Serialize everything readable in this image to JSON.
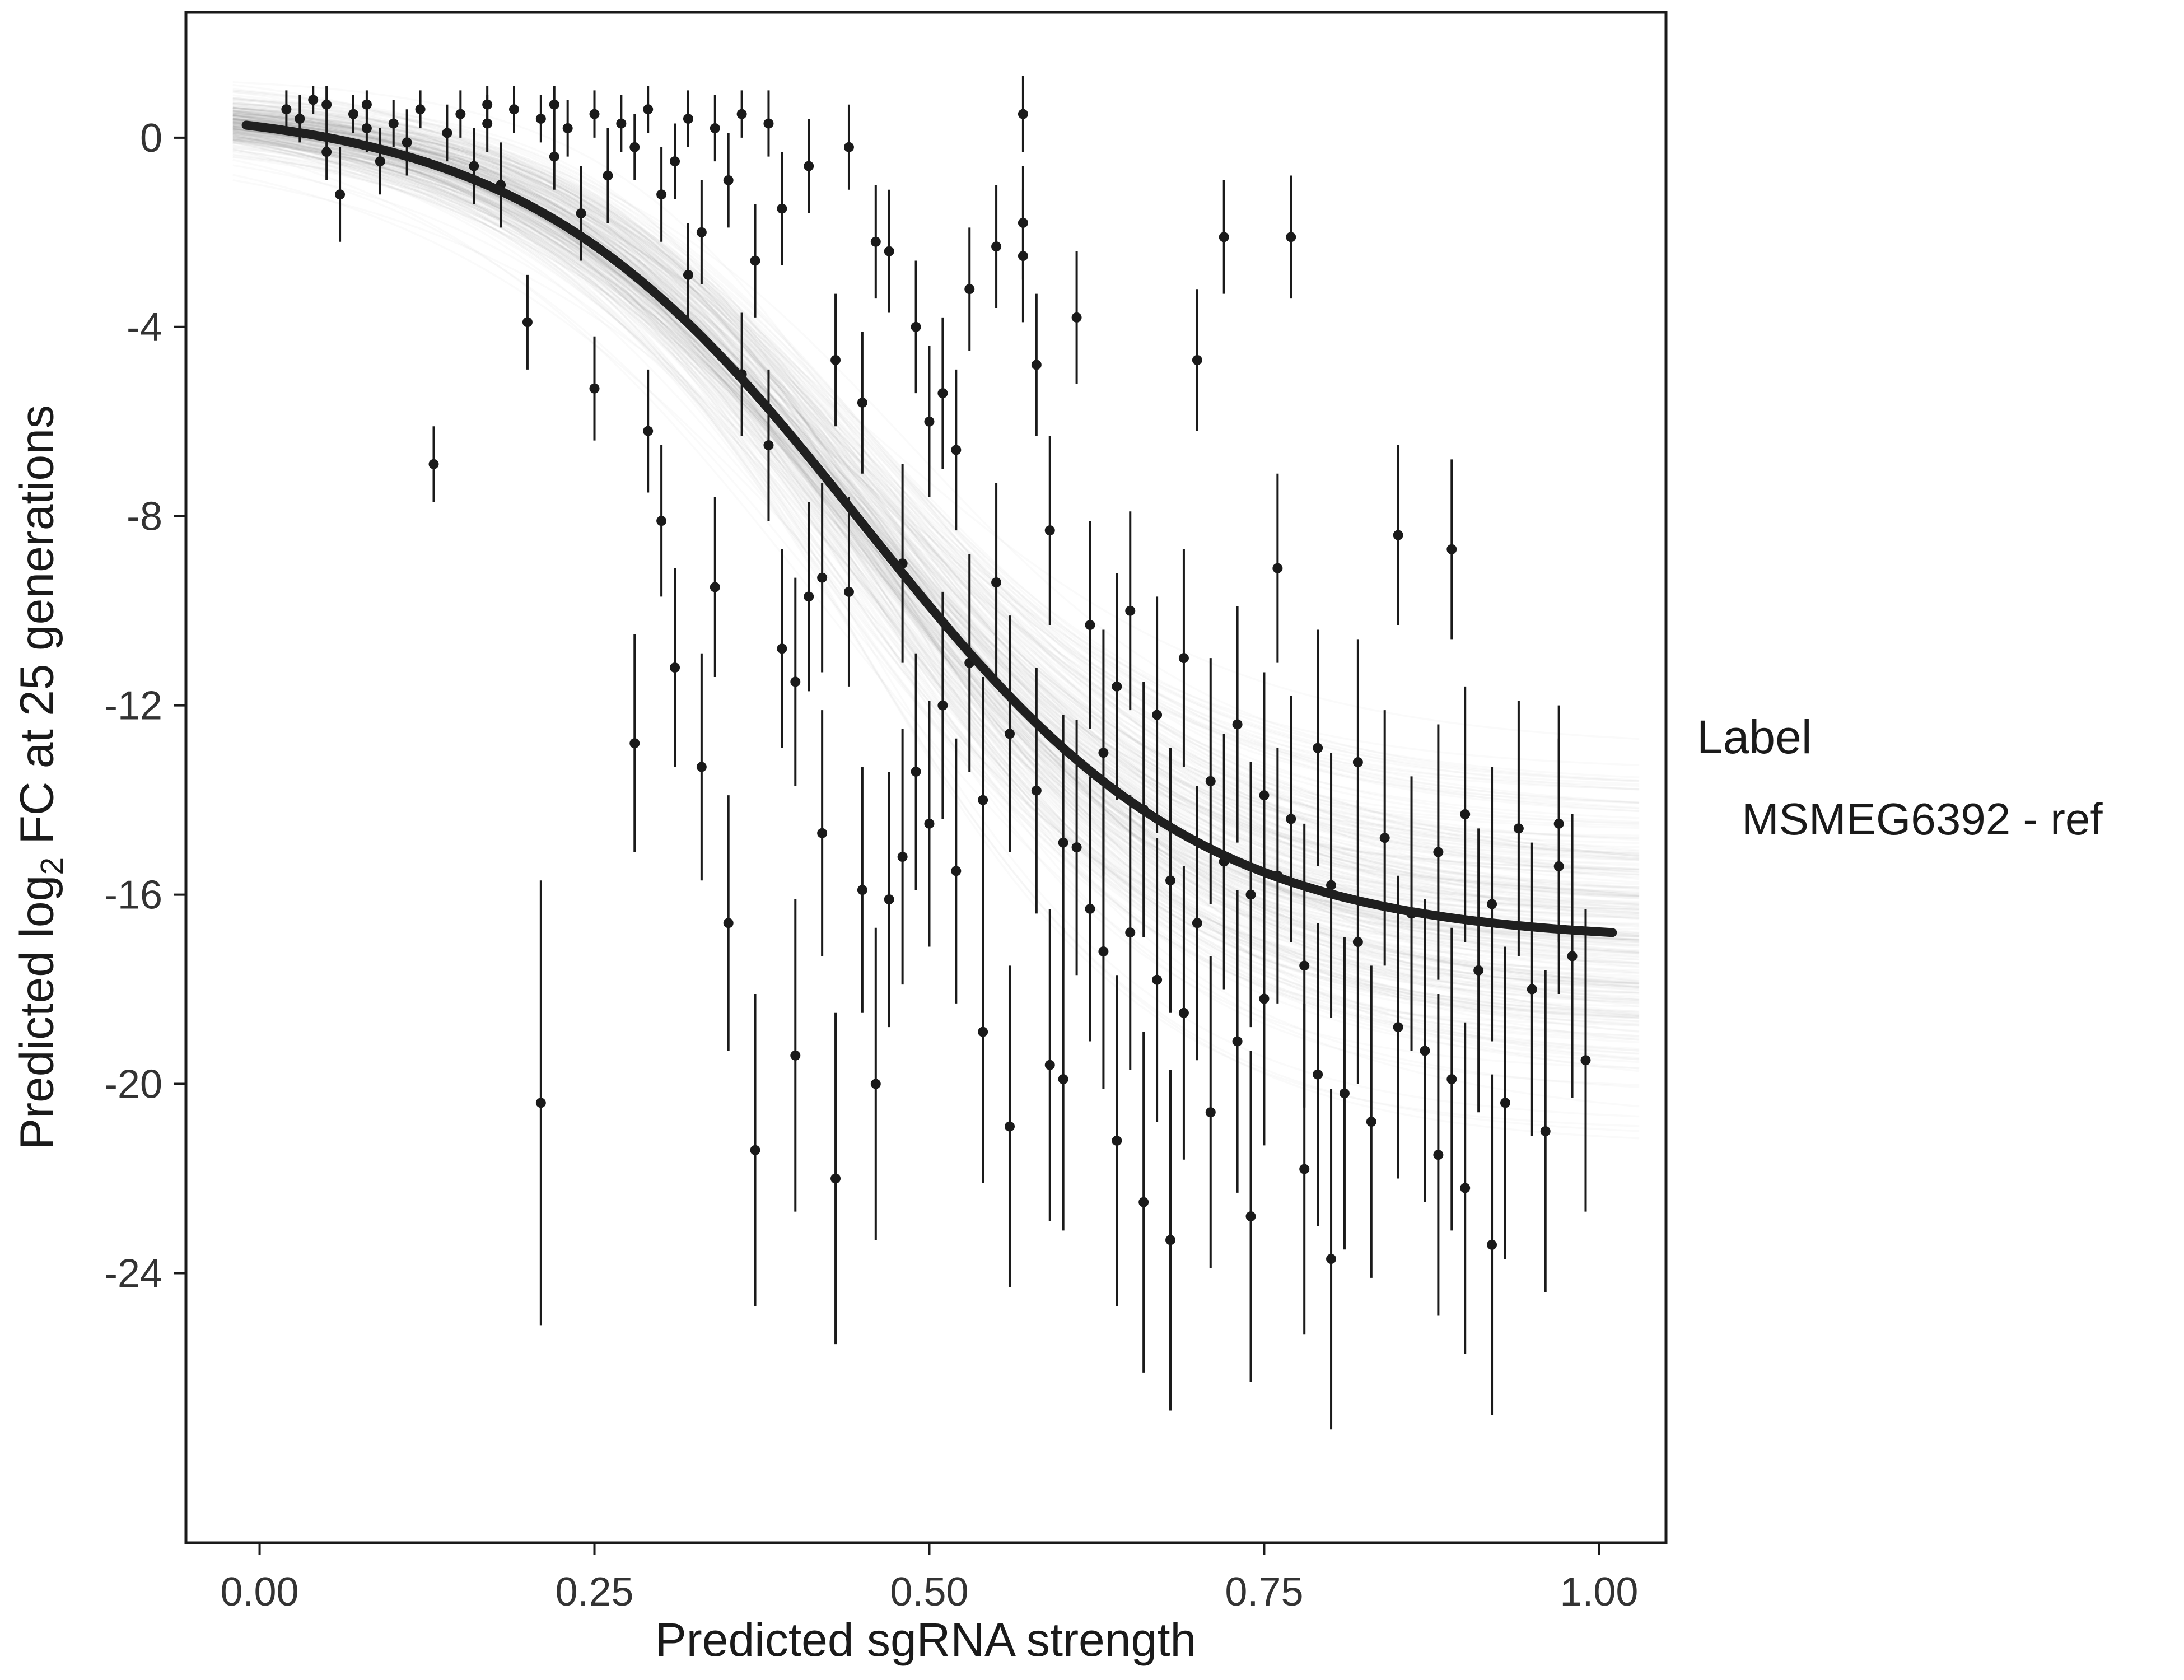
{
  "chart_data": {
    "type": "scatter",
    "title": "",
    "x_axis": {
      "label": "Predicted sgRNA strength",
      "tick_values": [
        0,
        0.25,
        0.5,
        0.75,
        1.0
      ],
      "tick_labels": [
        "0.00",
        "0.25",
        "0.50",
        "0.75",
        "1.00"
      ],
      "range": [
        -0.055,
        1.05
      ]
    },
    "y_axis": {
      "label_pre": "Predicted  log",
      "label_sub": "2",
      "label_post": " FC at 25 generations",
      "tick_values": [
        0,
        -4,
        -8,
        -12,
        -16,
        -20,
        -24
      ],
      "tick_labels": [
        "0",
        "-4",
        "-8",
        "-12",
        "-16",
        "-20",
        "-24"
      ],
      "range": [
        -29.7,
        2.65
      ]
    },
    "legend": {
      "title": "Label",
      "entries": [
        {
          "label": "MSMEG6392 - ref",
          "swatch_color": "#1a1a1a"
        }
      ]
    },
    "fit_curve": {
      "type": "logistic",
      "upper_asymptote": 0.7,
      "lower_asymptote": -17.0,
      "midpoint": 0.45,
      "steepness": 8,
      "color": "#1f1f1f"
    },
    "uncertainty_draws": {
      "count": 250,
      "upper_sd": 0.28,
      "lower_sd": 1.7,
      "midpoint_sd": 0.018,
      "steepness_sd": 0.9,
      "seed": 12345,
      "color": "#000000",
      "opacity": 0.02
    },
    "point_color": "#1a1a1a",
    "grid": false,
    "legend_position": "right",
    "points": [
      [
        0.02,
        0.6,
        0.2,
        1.0
      ],
      [
        0.03,
        0.4,
        -0.1,
        0.9
      ],
      [
        0.04,
        0.8,
        0.5,
        1.1
      ],
      [
        0.05,
        -0.3,
        -0.9,
        0.3
      ],
      [
        0.05,
        0.7,
        0.3,
        1.1
      ],
      [
        0.06,
        -1.2,
        -2.2,
        -0.2
      ],
      [
        0.07,
        0.5,
        0.1,
        0.9
      ],
      [
        0.08,
        0.2,
        -0.3,
        0.7
      ],
      [
        0.08,
        0.7,
        0.4,
        1.0
      ],
      [
        0.09,
        -0.5,
        -1.2,
        0.2
      ],
      [
        0.1,
        0.3,
        -0.2,
        0.8
      ],
      [
        0.11,
        -0.1,
        -0.8,
        0.6
      ],
      [
        0.12,
        0.6,
        0.2,
        1.0
      ],
      [
        0.13,
        -6.9,
        -7.7,
        -6.1
      ],
      [
        0.14,
        0.1,
        -0.5,
        0.7
      ],
      [
        0.15,
        0.5,
        0.0,
        1.0
      ],
      [
        0.16,
        -0.6,
        -1.4,
        0.2
      ],
      [
        0.17,
        0.3,
        -0.3,
        0.9
      ],
      [
        0.17,
        0.7,
        0.3,
        1.1
      ],
      [
        0.18,
        -1.0,
        -1.9,
        -0.1
      ],
      [
        0.19,
        0.6,
        0.1,
        1.1
      ],
      [
        0.2,
        -3.9,
        -4.9,
        -2.9
      ],
      [
        0.21,
        -20.4,
        -25.1,
        -15.7
      ],
      [
        0.21,
        0.4,
        -0.1,
        0.9
      ],
      [
        0.22,
        0.7,
        0.3,
        1.1
      ],
      [
        0.22,
        -0.4,
        -1.1,
        0.3
      ],
      [
        0.23,
        0.2,
        -0.4,
        0.8
      ],
      [
        0.24,
        -1.6,
        -2.6,
        -0.6
      ],
      [
        0.25,
        0.5,
        0.0,
        1.0
      ],
      [
        0.25,
        -5.3,
        -6.4,
        -4.2
      ],
      [
        0.26,
        -0.8,
        -1.8,
        0.2
      ],
      [
        0.27,
        0.3,
        -0.3,
        0.9
      ],
      [
        0.28,
        -12.8,
        -15.1,
        -10.5
      ],
      [
        0.28,
        -0.2,
        -0.9,
        0.5
      ],
      [
        0.29,
        -6.2,
        -7.5,
        -4.9
      ],
      [
        0.29,
        0.6,
        0.1,
        1.1
      ],
      [
        0.3,
        -8.1,
        -9.7,
        -6.5
      ],
      [
        0.3,
        -1.2,
        -2.2,
        -0.2
      ],
      [
        0.31,
        -0.5,
        -1.3,
        0.3
      ],
      [
        0.31,
        -11.2,
        -13.3,
        -9.1
      ],
      [
        0.32,
        0.4,
        -0.2,
        1.0
      ],
      [
        0.32,
        -2.9,
        -4.0,
        -1.8
      ],
      [
        0.33,
        -2.0,
        -3.1,
        -0.9
      ],
      [
        0.33,
        -13.3,
        -15.7,
        -10.9
      ],
      [
        0.34,
        -9.5,
        -11.4,
        -7.6
      ],
      [
        0.34,
        0.2,
        -0.5,
        0.9
      ],
      [
        0.35,
        -16.6,
        -19.3,
        -13.9
      ],
      [
        0.35,
        -0.9,
        -1.9,
        0.1
      ],
      [
        0.36,
        -5.0,
        -6.3,
        -3.7
      ],
      [
        0.36,
        0.5,
        0.0,
        1.0
      ],
      [
        0.37,
        -2.6,
        -3.8,
        -1.4
      ],
      [
        0.37,
        -21.4,
        -24.7,
        -18.1
      ],
      [
        0.38,
        -6.5,
        -8.1,
        -4.9
      ],
      [
        0.38,
        0.3,
        -0.4,
        1.0
      ],
      [
        0.39,
        -10.8,
        -12.9,
        -8.7
      ],
      [
        0.39,
        -1.5,
        -2.7,
        -0.3
      ],
      [
        0.4,
        -11.5,
        -13.7,
        -9.3
      ],
      [
        0.4,
        -19.4,
        -22.7,
        -16.1
      ],
      [
        0.41,
        -9.7,
        -11.7,
        -7.7
      ],
      [
        0.41,
        -0.6,
        -1.6,
        0.4
      ],
      [
        0.42,
        -14.7,
        -17.3,
        -12.1
      ],
      [
        0.42,
        -9.3,
        -11.3,
        -7.3
      ],
      [
        0.43,
        -4.7,
        -6.1,
        -3.3
      ],
      [
        0.43,
        -22.0,
        -25.5,
        -18.5
      ],
      [
        0.44,
        -9.6,
        -11.6,
        -7.6
      ],
      [
        0.44,
        -0.2,
        -1.1,
        0.7
      ],
      [
        0.45,
        -5.6,
        -7.1,
        -4.1
      ],
      [
        0.45,
        -15.9,
        -18.5,
        -13.3
      ],
      [
        0.46,
        -2.2,
        -3.4,
        -1.0
      ],
      [
        0.46,
        -20.0,
        -23.3,
        -16.7
      ],
      [
        0.47,
        -16.1,
        -18.8,
        -13.4
      ],
      [
        0.47,
        -2.4,
        -3.7,
        -1.1
      ],
      [
        0.48,
        -9.0,
        -11.1,
        -6.9
      ],
      [
        0.48,
        -15.2,
        -17.9,
        -12.5
      ],
      [
        0.49,
        -4.0,
        -5.4,
        -2.6
      ],
      [
        0.49,
        -13.4,
        -15.9,
        -10.9
      ],
      [
        0.5,
        -6.0,
        -7.6,
        -4.4
      ],
      [
        0.5,
        -14.5,
        -17.1,
        -11.9
      ],
      [
        0.51,
        -12.0,
        -14.4,
        -9.6
      ],
      [
        0.51,
        -5.4,
        -7.0,
        -3.8
      ],
      [
        0.52,
        -15.5,
        -18.3,
        -12.7
      ],
      [
        0.52,
        -6.6,
        -8.3,
        -4.9
      ],
      [
        0.53,
        -11.1,
        -13.4,
        -8.8
      ],
      [
        0.53,
        -3.2,
        -4.5,
        -1.9
      ],
      [
        0.54,
        -14.0,
        -16.6,
        -11.4
      ],
      [
        0.54,
        -18.9,
        -22.1,
        -15.7
      ],
      [
        0.55,
        -9.4,
        -11.5,
        -7.3
      ],
      [
        0.55,
        -2.3,
        -3.6,
        -1.0
      ],
      [
        0.56,
        -12.6,
        -15.1,
        -10.1
      ],
      [
        0.56,
        -20.9,
        -24.3,
        -17.5
      ],
      [
        0.57,
        0.5,
        -0.3,
        1.3
      ],
      [
        0.57,
        -1.8,
        -3.0,
        -0.6
      ],
      [
        0.57,
        -2.5,
        -3.9,
        -1.1
      ],
      [
        0.58,
        -4.8,
        -6.3,
        -3.3
      ],
      [
        0.58,
        -13.8,
        -16.4,
        -11.2
      ],
      [
        0.59,
        -8.3,
        -10.3,
        -6.3
      ],
      [
        0.59,
        -19.6,
        -22.9,
        -16.3
      ],
      [
        0.6,
        -14.9,
        -17.6,
        -12.2
      ],
      [
        0.6,
        -19.9,
        -23.1,
        -16.7
      ],
      [
        0.61,
        -3.8,
        -5.2,
        -2.4
      ],
      [
        0.61,
        -15.0,
        -17.7,
        -12.3
      ],
      [
        0.62,
        -10.3,
        -12.5,
        -8.1
      ],
      [
        0.62,
        -16.3,
        -19.1,
        -13.5
      ],
      [
        0.63,
        -13.0,
        -15.6,
        -10.4
      ],
      [
        0.63,
        -17.2,
        -20.1,
        -14.3
      ],
      [
        0.64,
        -11.6,
        -14.0,
        -9.2
      ],
      [
        0.64,
        -21.2,
        -24.7,
        -17.7
      ],
      [
        0.65,
        -16.8,
        -19.7,
        -13.9
      ],
      [
        0.65,
        -10.0,
        -12.1,
        -7.9
      ],
      [
        0.66,
        -14.2,
        -16.9,
        -11.5
      ],
      [
        0.66,
        -22.5,
        -26.1,
        -18.9
      ],
      [
        0.67,
        -12.2,
        -14.7,
        -9.7
      ],
      [
        0.67,
        -17.8,
        -20.8,
        -14.8
      ],
      [
        0.68,
        -15.7,
        -18.5,
        -12.9
      ],
      [
        0.68,
        -23.3,
        -26.9,
        -19.7
      ],
      [
        0.69,
        -11.0,
        -13.3,
        -8.7
      ],
      [
        0.69,
        -18.5,
        -21.6,
        -15.4
      ],
      [
        0.7,
        -4.7,
        -6.2,
        -3.2
      ],
      [
        0.7,
        -16.6,
        -19.5,
        -13.7
      ],
      [
        0.71,
        -13.6,
        -16.2,
        -11.0
      ],
      [
        0.71,
        -20.6,
        -23.9,
        -17.3
      ],
      [
        0.72,
        -2.1,
        -3.3,
        -0.9
      ],
      [
        0.72,
        -15.3,
        -18.0,
        -12.6
      ],
      [
        0.73,
        -12.4,
        -14.9,
        -9.9
      ],
      [
        0.73,
        -19.1,
        -22.3,
        -15.9
      ],
      [
        0.74,
        -16.0,
        -18.8,
        -13.2
      ],
      [
        0.74,
        -22.8,
        -26.3,
        -19.3
      ],
      [
        0.75,
        -13.9,
        -16.5,
        -11.3
      ],
      [
        0.75,
        -18.2,
        -21.3,
        -15.1
      ],
      [
        0.76,
        -9.1,
        -11.1,
        -7.1
      ],
      [
        0.76,
        -15.6,
        -18.3,
        -12.9
      ],
      [
        0.77,
        -2.1,
        -3.4,
        -0.8
      ],
      [
        0.77,
        -14.4,
        -17.0,
        -11.8
      ],
      [
        0.78,
        -17.5,
        -20.5,
        -14.5
      ],
      [
        0.78,
        -21.8,
        -25.3,
        -18.3
      ],
      [
        0.79,
        -12.9,
        -15.4,
        -10.4
      ],
      [
        0.79,
        -19.8,
        -23.0,
        -16.6
      ],
      [
        0.8,
        -15.8,
        -18.6,
        -13.0
      ],
      [
        0.8,
        -23.7,
        -27.3,
        -20.1
      ],
      [
        0.81,
        -20.2,
        -23.5,
        -16.9
      ],
      [
        0.82,
        -13.2,
        -15.8,
        -10.6
      ],
      [
        0.82,
        -17.0,
        -20.0,
        -14.0
      ],
      [
        0.83,
        -20.8,
        -24.1,
        -17.5
      ],
      [
        0.84,
        -14.8,
        -17.5,
        -12.1
      ],
      [
        0.85,
        -8.4,
        -10.3,
        -6.5
      ],
      [
        0.85,
        -18.8,
        -22.0,
        -15.6
      ],
      [
        0.86,
        -16.4,
        -19.3,
        -13.5
      ],
      [
        0.87,
        -19.3,
        -22.5,
        -16.1
      ],
      [
        0.88,
        -15.1,
        -17.8,
        -12.4
      ],
      [
        0.88,
        -21.5,
        -24.9,
        -18.1
      ],
      [
        0.89,
        -8.7,
        -10.6,
        -6.8
      ],
      [
        0.89,
        -19.9,
        -23.1,
        -16.7
      ],
      [
        0.9,
        -14.3,
        -17.0,
        -11.6
      ],
      [
        0.9,
        -22.2,
        -25.7,
        -18.7
      ],
      [
        0.91,
        -17.6,
        -20.6,
        -14.6
      ],
      [
        0.92,
        -23.4,
        -27.0,
        -19.8
      ],
      [
        0.92,
        -16.2,
        -19.1,
        -13.3
      ],
      [
        0.93,
        -20.4,
        -23.7,
        -17.1
      ],
      [
        0.94,
        -14.6,
        -17.3,
        -11.9
      ],
      [
        0.95,
        -18.0,
        -21.1,
        -14.9
      ],
      [
        0.96,
        -21.0,
        -24.4,
        -17.6
      ],
      [
        0.97,
        -15.4,
        -18.1,
        -12.7
      ],
      [
        0.97,
        -14.5,
        -17.0,
        -12.0
      ],
      [
        0.98,
        -17.3,
        -20.3,
        -14.3
      ],
      [
        0.99,
        -19.5,
        -22.7,
        -16.3
      ]
    ]
  }
}
